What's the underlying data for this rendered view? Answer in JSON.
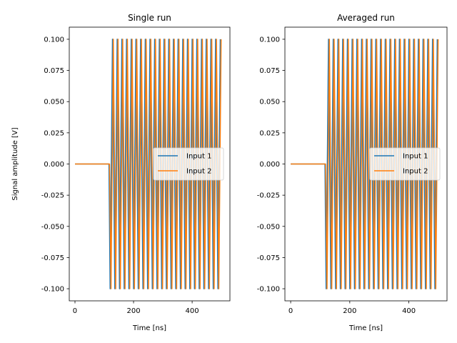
{
  "chart_data": [
    {
      "type": "line",
      "title": "Single run",
      "xlabel": "Time [ns]",
      "ylabel": "Signal amplitude [V]",
      "xlim": [
        -19.5,
        529
      ],
      "ylim": [
        -0.1097,
        0.1097
      ],
      "xticks": [
        0,
        200,
        400
      ],
      "yticks": [
        "-0.100",
        "-0.075",
        "-0.050",
        "-0.025",
        "0.000",
        "0.025",
        "0.050",
        "0.075",
        "0.100"
      ],
      "grid": false,
      "legend": "center-right",
      "series": [
        {
          "name": "Input 1",
          "color": "#1f77b4",
          "x": [
            0,
            116,
            120,
            128,
            136,
            144,
            152,
            160,
            168,
            176,
            184,
            192,
            200,
            208,
            216,
            224,
            232,
            240,
            248,
            256,
            264,
            272,
            280,
            288,
            296,
            304,
            312,
            320,
            328,
            336,
            344,
            352,
            360,
            368,
            376,
            384,
            392,
            400,
            408,
            416,
            424,
            432,
            440,
            448,
            456,
            464,
            472,
            480,
            488,
            496
          ],
          "y": [
            0,
            0,
            -0.1,
            0.1,
            -0.1,
            0.1,
            -0.1,
            0.1,
            -0.1,
            0.1,
            -0.1,
            0.1,
            -0.1,
            0.1,
            -0.1,
            0.1,
            -0.1,
            0.1,
            -0.1,
            0.1,
            -0.1,
            0.1,
            -0.1,
            0.1,
            -0.1,
            0.1,
            -0.1,
            0.1,
            -0.1,
            0.1,
            -0.1,
            0.1,
            -0.1,
            0.1,
            -0.1,
            0.1,
            -0.1,
            0.1,
            -0.1,
            0.1,
            -0.1,
            0.1,
            -0.1,
            0.1,
            -0.1,
            0.1,
            -0.1,
            0.1,
            -0.1,
            0.1
          ]
        },
        {
          "name": "Input 2",
          "color": "#ff7f0e",
          "x": [
            0,
            118,
            123,
            131,
            139,
            147,
            155,
            163,
            171,
            179,
            187,
            195,
            203,
            211,
            219,
            227,
            235,
            243,
            251,
            259,
            267,
            275,
            283,
            291,
            299,
            307,
            315,
            323,
            331,
            339,
            347,
            355,
            363,
            371,
            379,
            387,
            395,
            403,
            411,
            419,
            427,
            435,
            443,
            451,
            459,
            467,
            475,
            483,
            491,
            499
          ],
          "y": [
            0,
            0,
            -0.1,
            0.1,
            -0.1,
            0.1,
            -0.1,
            0.1,
            -0.1,
            0.1,
            -0.1,
            0.1,
            -0.1,
            0.1,
            -0.1,
            0.1,
            -0.1,
            0.1,
            -0.1,
            0.1,
            -0.1,
            0.1,
            -0.1,
            0.1,
            -0.1,
            0.1,
            -0.1,
            0.1,
            -0.1,
            0.1,
            -0.1,
            0.1,
            -0.1,
            0.1,
            -0.1,
            0.1,
            -0.1,
            0.1,
            -0.1,
            0.1,
            -0.1,
            0.1,
            -0.1,
            0.1,
            -0.1,
            0.1,
            -0.1,
            0.1,
            -0.1,
            0.1
          ]
        }
      ]
    },
    {
      "type": "line",
      "title": "Averaged run",
      "xlabel": "Time [ns]",
      "ylabel": "",
      "xlim": [
        -19.5,
        529
      ],
      "ylim": [
        -0.1097,
        0.1097
      ],
      "xticks": [
        0,
        200,
        400
      ],
      "yticks": [
        "-0.100",
        "-0.075",
        "-0.050",
        "-0.025",
        "0.000",
        "0.025",
        "0.050",
        "0.075",
        "0.100"
      ],
      "grid": false,
      "legend": "center-right",
      "series": [
        {
          "name": "Input 1",
          "color": "#1f77b4",
          "x": [
            0,
            116,
            120,
            128,
            136,
            144,
            152,
            160,
            168,
            176,
            184,
            192,
            200,
            208,
            216,
            224,
            232,
            240,
            248,
            256,
            264,
            272,
            280,
            288,
            296,
            304,
            312,
            320,
            328,
            336,
            344,
            352,
            360,
            368,
            376,
            384,
            392,
            400,
            408,
            416,
            424,
            432,
            440,
            448,
            456,
            464,
            472,
            480,
            488,
            496
          ],
          "y": [
            0,
            0,
            -0.1,
            0.1,
            -0.1,
            0.1,
            -0.1,
            0.1,
            -0.1,
            0.1,
            -0.1,
            0.1,
            -0.1,
            0.1,
            -0.1,
            0.1,
            -0.1,
            0.1,
            -0.1,
            0.1,
            -0.1,
            0.1,
            -0.1,
            0.1,
            -0.1,
            0.1,
            -0.1,
            0.1,
            -0.1,
            0.1,
            -0.1,
            0.1,
            -0.1,
            0.1,
            -0.1,
            0.1,
            -0.1,
            0.1,
            -0.1,
            0.1,
            -0.1,
            0.1,
            -0.1,
            0.1,
            -0.1,
            0.1,
            -0.1,
            0.1,
            -0.1,
            0.1
          ]
        },
        {
          "name": "Input 2",
          "color": "#ff7f0e",
          "x": [
            0,
            118,
            123,
            131,
            139,
            147,
            155,
            163,
            171,
            179,
            187,
            195,
            203,
            211,
            219,
            227,
            235,
            243,
            251,
            259,
            267,
            275,
            283,
            291,
            299,
            307,
            315,
            323,
            331,
            339,
            347,
            355,
            363,
            371,
            379,
            387,
            395,
            403,
            411,
            419,
            427,
            435,
            443,
            451,
            459,
            467,
            475,
            483,
            491,
            499
          ],
          "y": [
            0,
            0,
            -0.1,
            0.1,
            -0.1,
            0.1,
            -0.1,
            0.1,
            -0.1,
            0.1,
            -0.1,
            0.1,
            -0.1,
            0.1,
            -0.1,
            0.1,
            -0.1,
            0.1,
            -0.1,
            0.1,
            -0.1,
            0.1,
            -0.1,
            0.1,
            -0.1,
            0.1,
            -0.1,
            0.1,
            -0.1,
            0.1,
            -0.1,
            0.1,
            -0.1,
            0.1,
            -0.1,
            0.1,
            -0.1,
            0.1,
            -0.1,
            0.1,
            -0.1,
            0.1,
            -0.1,
            0.1,
            -0.1,
            0.1,
            -0.1,
            0.1,
            -0.1,
            0.1
          ]
        }
      ]
    }
  ]
}
